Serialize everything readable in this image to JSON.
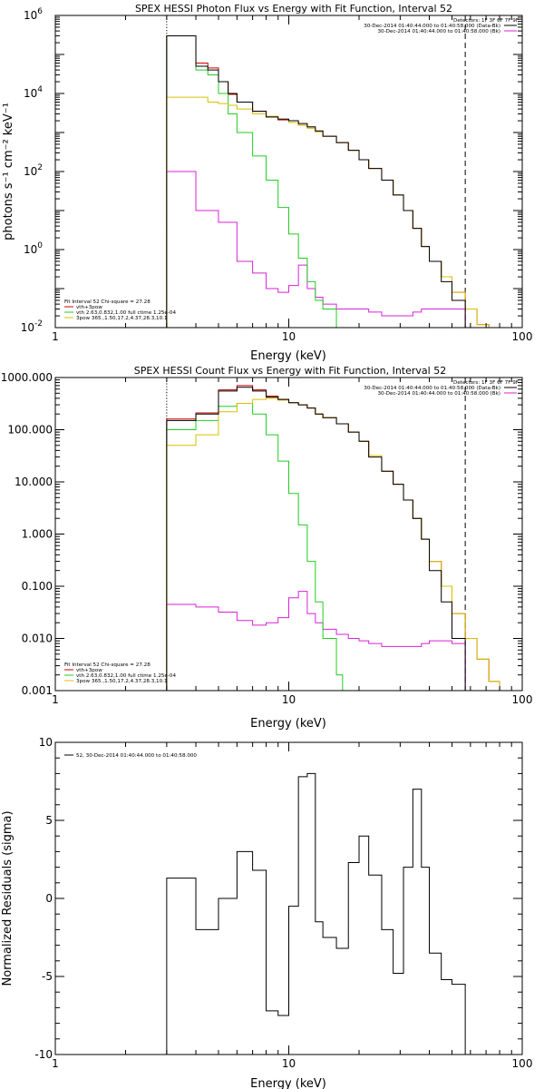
{
  "chart_data": [
    {
      "type": "line",
      "title": "SPEX HESSI Photon Flux vs Energy with Fit Function, Interval 52",
      "xlabel": "Energy (keV)",
      "ylabel": "photons s⁻¹ cm⁻² keV⁻¹",
      "xscale": "log",
      "yscale": "log",
      "xlim": [
        1,
        100
      ],
      "ylim": [
        0.01,
        1000000
      ],
      "x_tick_labels": [
        "1",
        "10",
        "100"
      ],
      "y_tick_labels": [
        {
          "base": "10",
          "exp": "-2",
          "value": 0.01
        },
        {
          "base": "10",
          "exp": "0",
          "value": 1
        },
        {
          "base": "10",
          "exp": "2",
          "value": 100
        },
        {
          "base": "10",
          "exp": "4",
          "value": 10000
        },
        {
          "base": "10",
          "exp": "6",
          "value": 1000000
        }
      ],
      "vertical_lines": [
        {
          "x": 3.0,
          "style": "dotted",
          "color": "#000000"
        },
        {
          "x": 57.0,
          "style": "dashed",
          "color": "#000000"
        }
      ],
      "legend_top_right": [
        {
          "text": "Detectors: 1F 3F 6F 7F 9F",
          "color": "#000000",
          "swatch": false
        },
        {
          "text": "30-Dec-2014 01:40:44.000 to 01:40:58.000 (Data-Bk)",
          "color": "#000000",
          "swatch": true
        },
        {
          "text": "30-Dec-2014 01:40:44.000 to 01:40:58.000 (Bk)",
          "color": "#d822d8",
          "swatch": true
        }
      ],
      "legend_bottom_left": [
        {
          "text": "Fit Interval 52   Chi-square = 27.28",
          "color": "#000000",
          "swatch": false
        },
        {
          "text": "vth+3pow",
          "color": "#cc0000",
          "swatch": true
        },
        {
          "text": "vth 2.63,0.832,1.00  full ctime 1.25e-04",
          "color": "#22cc22",
          "swatch": true
        },
        {
          "text": "3pow 365.,1.50,17.2,4.37,28.3,10.1",
          "color": "#d8c000",
          "swatch": true
        }
      ],
      "series": [
        {
          "name": "Data-Bk",
          "color": "#000000",
          "edges": [
            3.0,
            3.5,
            4.0,
            4.5,
            5.0,
            5.5,
            6.0,
            7.0,
            8.0,
            9.0,
            10.0,
            11.0,
            12.0,
            13.0,
            14.0,
            16.0,
            18.0,
            20.0,
            22.0,
            25.0,
            28.0,
            31.0,
            34.0,
            37.0,
            40.0,
            45.0,
            50.0,
            57.0
          ],
          "values": [
            300000,
            300000,
            50000,
            40000,
            20000,
            10000,
            6000,
            3500,
            2500,
            2200,
            2000,
            1700,
            1400,
            1100,
            800,
            550,
            350,
            200,
            120,
            60,
            25,
            10,
            3.5,
            1.2,
            0.5,
            0.15,
            0.05
          ]
        },
        {
          "name": "Bk",
          "color": "#d822d8",
          "edges": [
            3.0,
            4.0,
            5.0,
            6.0,
            7.0,
            8.0,
            9.0,
            10.0,
            11.0,
            12.0,
            13.0,
            14.0,
            16.0,
            18.0,
            20.0,
            22.0,
            25.0,
            28.0,
            31.0,
            34.0,
            37.0,
            40.0,
            45.0,
            50.0,
            57.0
          ],
          "values": [
            100,
            10,
            5,
            0.5,
            0.25,
            0.1,
            0.08,
            0.12,
            0.4,
            0.1,
            0.06,
            0.04,
            0.03,
            0.03,
            0.03,
            0.025,
            0.02,
            0.02,
            0.02,
            0.025,
            0.03,
            0.03,
            0.03,
            0.03
          ]
        },
        {
          "name": "vth+3pow",
          "color": "#cc0000",
          "edges": [
            3.0,
            3.5,
            4.0,
            4.5,
            5.0,
            5.5,
            6.0,
            7.0,
            8.0,
            9.0,
            10.0,
            11.0,
            12.0,
            13.0,
            14.0,
            16.0,
            18.0,
            20.0,
            22.0,
            25.0,
            28.0,
            31.0,
            34.0,
            37.0,
            40.0,
            45.0,
            50.0,
            57.0,
            64.0,
            72.0
          ],
          "values": [
            300000,
            300000,
            60000,
            45000,
            20000,
            9500,
            6000,
            3500,
            2500,
            2100,
            1800,
            1550,
            1300,
            1050,
            800,
            550,
            350,
            200,
            120,
            60,
            25,
            10,
            3.5,
            1.2,
            0.5,
            0.2,
            0.08,
            0.03,
            0.012
          ]
        },
        {
          "name": "vth",
          "color": "#22cc22",
          "edges": [
            3.0,
            3.5,
            4.0,
            4.5,
            5.0,
            5.5,
            6.0,
            7.0,
            8.0,
            9.0,
            10.0,
            11.0,
            12.0,
            13.0,
            14.0,
            16.0,
            17.0
          ],
          "values": [
            300000,
            300000,
            40000,
            30000,
            10000,
            3000,
            1000,
            250,
            60,
            12,
            2.5,
            0.6,
            0.15,
            0.05,
            0.03,
            0.01
          ]
        },
        {
          "name": "3pow",
          "color": "#d8c000",
          "edges": [
            3.0,
            3.5,
            4.0,
            4.5,
            5.0,
            5.5,
            6.0,
            7.0,
            8.0,
            9.0,
            10.0,
            11.0,
            12.0,
            13.0,
            14.0,
            16.0,
            18.0,
            20.0,
            22.0,
            25.0,
            28.0,
            31.0,
            34.0,
            37.0,
            40.0,
            45.0,
            50.0,
            57.0,
            64.0,
            72.0
          ],
          "values": [
            8000,
            8000,
            8000,
            6000,
            5500,
            5000,
            4000,
            3000,
            2600,
            2200,
            1800,
            1550,
            1300,
            1050,
            800,
            550,
            350,
            200,
            120,
            60,
            25,
            10,
            3.5,
            1.2,
            0.5,
            0.2,
            0.08,
            0.03,
            0.012
          ]
        }
      ]
    },
    {
      "type": "line",
      "title": "SPEX HESSI Count Flux vs Energy with Fit Function, Interval 52",
      "xlabel": "Energy (keV)",
      "ylabel": "",
      "xscale": "log",
      "yscale": "log",
      "xlim": [
        1,
        100
      ],
      "ylim": [
        0.001,
        1000
      ],
      "x_tick_labels": [
        "1",
        "10",
        "100"
      ],
      "y_tick_labels": [
        {
          "text": "0.001",
          "value": 0.001
        },
        {
          "text": "0.010",
          "value": 0.01
        },
        {
          "text": "0.100",
          "value": 0.1
        },
        {
          "text": "1.000",
          "value": 1
        },
        {
          "text": "10.000",
          "value": 10
        },
        {
          "text": "100.000",
          "value": 100
        },
        {
          "text": "1000.000",
          "value": 1000
        }
      ],
      "vertical_lines": [
        {
          "x": 3.0,
          "style": "dotted",
          "color": "#000000"
        },
        {
          "x": 57.0,
          "style": "dashed",
          "color": "#000000"
        }
      ],
      "legend_top_right": [
        {
          "text": "Detectors: 1F 3F 6F 7F 9F",
          "color": "#000000",
          "swatch": false
        },
        {
          "text": "30-Dec-2014 01:40:44.000 to 01:40:58.000 (Data-Bk)",
          "color": "#000000",
          "swatch": true
        },
        {
          "text": "30-Dec-2014 01:40:44.000 to 01:40:58.000 (Bk)",
          "color": "#d822d8",
          "swatch": true
        }
      ],
      "legend_bottom_left": [
        {
          "text": "Fit Interval 52   Chi-square = 27.28",
          "color": "#000000",
          "swatch": false
        },
        {
          "text": "vth+3pow",
          "color": "#cc0000",
          "swatch": true
        },
        {
          "text": "vth 2.63,0.832,1.00  full ctime 1.25e-04",
          "color": "#22cc22",
          "swatch": true
        },
        {
          "text": "3pow 365.,1.50,17.2,4.37,28.3,10.1",
          "color": "#d8c000",
          "swatch": true
        }
      ],
      "series": [
        {
          "name": "Data-Bk",
          "color": "#000000",
          "edges": [
            3.0,
            4.0,
            5.0,
            6.0,
            7.0,
            8.0,
            9.0,
            10.0,
            11.0,
            12.0,
            13.0,
            14.0,
            16.0,
            18.0,
            20.0,
            22.0,
            25.0,
            28.0,
            31.0,
            34.0,
            37.0,
            40.0,
            45.0,
            50.0,
            57.0
          ],
          "values": [
            150,
            200,
            550,
            650,
            550,
            420,
            380,
            330,
            300,
            260,
            200,
            170,
            130,
            90,
            60,
            30,
            16,
            9,
            4.5,
            2,
            0.8,
            0.2,
            0.05,
            0.01
          ]
        },
        {
          "name": "Bk",
          "color": "#d822d8",
          "edges": [
            3.0,
            4.0,
            5.0,
            6.0,
            7.0,
            8.0,
            9.0,
            10.0,
            11.0,
            12.0,
            13.0,
            14.0,
            16.0,
            18.0,
            20.0,
            22.0,
            25.0,
            28.0,
            31.0,
            34.0,
            37.0,
            40.0,
            45.0,
            50.0,
            57.0
          ],
          "values": [
            0.045,
            0.04,
            0.032,
            0.022,
            0.018,
            0.02,
            0.025,
            0.06,
            0.08,
            0.03,
            0.02,
            0.015,
            0.012,
            0.01,
            0.009,
            0.008,
            0.007,
            0.007,
            0.007,
            0.007,
            0.008,
            0.009,
            0.009,
            0.008
          ]
        },
        {
          "name": "vth+3pow",
          "color": "#cc0000",
          "edges": [
            3.0,
            4.0,
            5.0,
            6.0,
            7.0,
            8.0,
            9.0,
            10.0,
            11.0,
            12.0,
            13.0,
            14.0,
            16.0,
            18.0,
            20.0,
            22.0,
            25.0,
            28.0,
            31.0,
            34.0,
            37.0,
            40.0,
            45.0,
            50.0,
            57.0,
            64.0,
            72.0,
            80.0
          ],
          "values": [
            160,
            210,
            580,
            700,
            580,
            440,
            380,
            330,
            300,
            260,
            200,
            170,
            130,
            90,
            60,
            32,
            16,
            9,
            4.5,
            2,
            0.8,
            0.3,
            0.1,
            0.03,
            0.01,
            0.004,
            0.0015
          ]
        },
        {
          "name": "vth",
          "color": "#22cc22",
          "edges": [
            3.0,
            4.0,
            5.0,
            6.0,
            7.0,
            8.0,
            9.0,
            10.0,
            11.0,
            12.0,
            13.0,
            14.0,
            16.0,
            17.0
          ],
          "values": [
            100,
            150,
            280,
            320,
            200,
            80,
            25,
            6,
            1.5,
            0.3,
            0.05,
            0.01,
            0.002
          ]
        },
        {
          "name": "3pow",
          "color": "#d8c000",
          "edges": [
            3.0,
            4.0,
            5.0,
            6.0,
            7.0,
            8.0,
            9.0,
            10.0,
            11.0,
            12.0,
            13.0,
            14.0,
            16.0,
            18.0,
            20.0,
            22.0,
            25.0,
            28.0,
            31.0,
            34.0,
            37.0,
            40.0,
            45.0,
            50.0,
            57.0,
            64.0,
            72.0,
            80.0
          ],
          "values": [
            50,
            80,
            220,
            320,
            380,
            400,
            370,
            330,
            300,
            260,
            200,
            170,
            130,
            90,
            60,
            32,
            16,
            9,
            4.5,
            2,
            0.8,
            0.3,
            0.1,
            0.03,
            0.01,
            0.004,
            0.0015
          ]
        }
      ]
    },
    {
      "type": "line",
      "title": "",
      "xlabel": "Energy (keV)",
      "ylabel": "Normalized Residuals (sigma)",
      "xscale": "log",
      "yscale": "linear",
      "xlim": [
        1,
        100
      ],
      "ylim": [
        -10,
        10
      ],
      "x_tick_labels": [
        "1",
        "10",
        "100"
      ],
      "y_tick_labels": [
        {
          "text": "-10",
          "value": -10
        },
        {
          "text": "-5",
          "value": -5
        },
        {
          "text": "0",
          "value": 0
        },
        {
          "text": "5",
          "value": 5
        },
        {
          "text": "10",
          "value": 10
        }
      ],
      "legend_top_left": [
        {
          "text": "52, 30-Dec-2014 01:40:44.000 to 01:40:58.000",
          "color": "#000000",
          "swatch": true
        }
      ],
      "series": [
        {
          "name": "52, 30-Dec-2014 01:40:44.000 to 01:40:58.000",
          "color": "#000000",
          "edges": [
            3.0,
            4.0,
            5.0,
            6.0,
            7.0,
            8.0,
            9.0,
            10.0,
            11.0,
            12.0,
            13.0,
            14.0,
            16.0,
            18.0,
            20.0,
            22.0,
            25.0,
            28.0,
            31.0,
            34.0,
            37.0,
            40.0,
            45.0,
            50.0,
            57.0
          ],
          "values": [
            1.3,
            -2.0,
            0.0,
            3.0,
            1.8,
            -7.2,
            -7.5,
            -0.5,
            7.8,
            8.0,
            -1.5,
            -2.5,
            -3.2,
            2.3,
            4.0,
            1.5,
            -2.0,
            -4.8,
            2.0,
            7.0,
            2.0,
            -3.5,
            -5.2,
            -5.5
          ]
        }
      ]
    }
  ]
}
